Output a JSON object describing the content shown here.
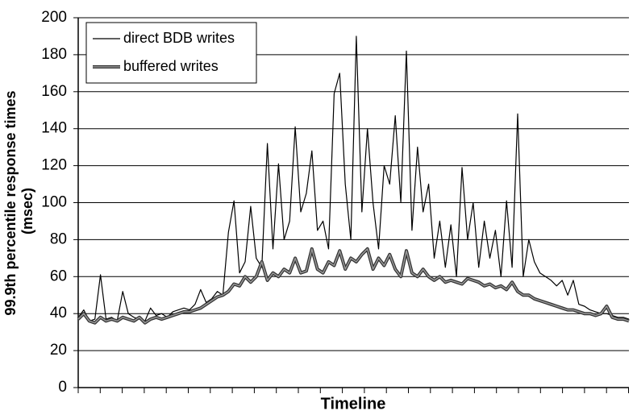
{
  "chart_data": {
    "type": "line",
    "xlabel": "Timeline",
    "ylabel": [
      "99.9th percentile response times",
      "(msec)"
    ],
    "ylim": [
      0,
      200
    ],
    "yticks": [
      0,
      20,
      40,
      60,
      80,
      100,
      120,
      140,
      160,
      180,
      200
    ],
    "grid": true,
    "legend": "upper left",
    "series": [
      {
        "name": "direct BDB writes",
        "color": "#000000",
        "width": 1.2,
        "values": [
          38,
          42,
          36,
          37,
          61,
          37,
          38,
          36,
          52,
          40,
          38,
          37,
          36,
          43,
          39,
          40,
          38,
          41,
          42,
          43,
          42,
          45,
          53,
          46,
          48,
          52,
          50,
          84,
          101,
          62,
          68,
          98,
          70,
          65,
          132,
          75,
          121,
          80,
          90,
          141,
          95,
          105,
          128,
          85,
          90,
          75,
          159,
          170,
          110,
          80,
          190,
          95,
          140,
          100,
          75,
          120,
          110,
          147,
          100,
          182,
          85,
          130,
          95,
          110,
          70,
          90,
          65,
          88,
          60,
          119,
          80,
          100,
          65,
          90,
          70,
          85,
          60,
          101,
          65,
          148,
          60,
          80,
          68,
          62,
          60,
          58,
          55,
          58,
          50,
          58,
          45,
          44,
          42,
          41,
          40,
          40,
          39,
          38,
          38,
          37
        ]
      },
      {
        "name": "buffered writes",
        "color": "#333333",
        "width": 4,
        "values": [
          37,
          40,
          36,
          35,
          38,
          36,
          37,
          36,
          38,
          37,
          36,
          38,
          35,
          37,
          38,
          37,
          38,
          39,
          40,
          41,
          41,
          42,
          43,
          45,
          47,
          49,
          50,
          52,
          56,
          55,
          60,
          57,
          60,
          68,
          58,
          62,
          60,
          64,
          62,
          70,
          62,
          63,
          75,
          64,
          62,
          68,
          66,
          74,
          64,
          70,
          68,
          72,
          75,
          64,
          70,
          66,
          72,
          64,
          60,
          74,
          62,
          60,
          64,
          60,
          58,
          60,
          57,
          58,
          57,
          56,
          59,
          58,
          57,
          55,
          56,
          54,
          55,
          53,
          57,
          52,
          50,
          50,
          48,
          47,
          46,
          45,
          44,
          43,
          42,
          42,
          41,
          40,
          40,
          39,
          40,
          44,
          38,
          37,
          37,
          36
        ]
      }
    ]
  }
}
